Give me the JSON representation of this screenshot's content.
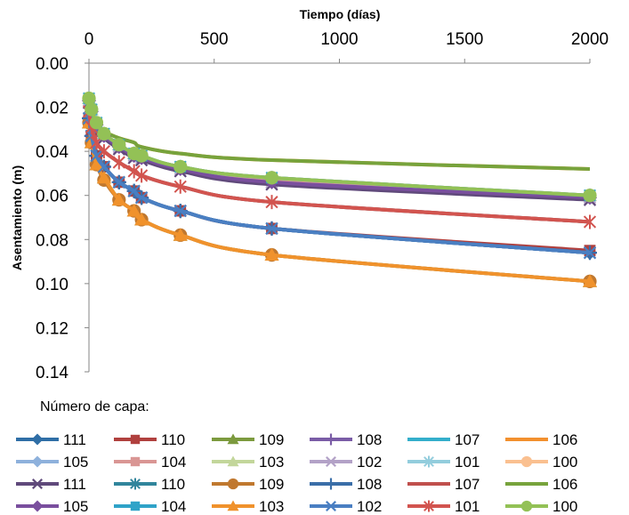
{
  "chart_data": {
    "type": "line",
    "title": "",
    "xlabel": "Tiempo (días)",
    "ylabel": "Asentamiento (m)",
    "xlim": [
      0,
      2000
    ],
    "ylim": [
      0.14,
      0.0
    ],
    "y_inverted": true,
    "x_axis_position": "top",
    "x_ticks": [
      "0",
      "500",
      "1000",
      "1500",
      "2000"
    ],
    "y_ticks": [
      "0.00",
      "0.02",
      "0.04",
      "0.06",
      "0.08",
      "0.10",
      "0.12",
      "0.14"
    ],
    "grid": false,
    "legend_title": "Número de capa:",
    "legend_position": "bottom",
    "x": [
      0,
      10,
      30,
      60,
      120,
      180,
      210,
      365,
      730,
      2000
    ],
    "series": [
      {
        "name": "111",
        "color": "#2f6ea6",
        "marker": "diamond",
        "values": [
          0.025,
          0.033,
          0.042,
          0.047,
          0.054,
          0.058,
          0.061,
          0.067,
          0.075,
          0.086
        ]
      },
      {
        "name": "110",
        "color": "#b0403e",
        "marker": "square",
        "values": [
          0.025,
          0.033,
          0.042,
          0.047,
          0.054,
          0.058,
          0.061,
          0.067,
          0.075,
          0.085
        ]
      },
      {
        "name": "109",
        "color": "#7c9a3e",
        "marker": "triangle",
        "values": [
          0.027,
          0.036,
          0.046,
          0.052,
          0.062,
          0.067,
          0.071,
          0.078,
          0.087,
          0.099
        ]
      },
      {
        "name": "108",
        "color": "#7a5ca6",
        "marker": "plus",
        "values": [
          0.025,
          0.033,
          0.042,
          0.047,
          0.054,
          0.058,
          0.061,
          0.067,
          0.075,
          0.086
        ]
      },
      {
        "name": "107",
        "color": "#33aecb",
        "marker": "none",
        "values": [
          0.022,
          0.029,
          0.036,
          0.04,
          0.045,
          0.049,
          0.051,
          0.056,
          0.063,
          0.072
        ]
      },
      {
        "name": "106",
        "color": "#f2902e",
        "marker": "none",
        "values": [
          0.018,
          0.023,
          0.028,
          0.031,
          0.034,
          0.036,
          0.038,
          0.041,
          0.044,
          0.048
        ]
      },
      {
        "name": "105",
        "color": "#8eb1dc",
        "marker": "diamond",
        "values": [
          0.017,
          0.022,
          0.028,
          0.033,
          0.038,
          0.042,
          0.043,
          0.047,
          0.053,
          0.061
        ]
      },
      {
        "name": "104",
        "color": "#d99694",
        "marker": "square",
        "values": [
          0.017,
          0.022,
          0.028,
          0.033,
          0.038,
          0.042,
          0.043,
          0.047,
          0.053,
          0.061
        ]
      },
      {
        "name": "103",
        "color": "#c3d69b",
        "marker": "triangle",
        "values": [
          0.016,
          0.021,
          0.027,
          0.032,
          0.037,
          0.041,
          0.042,
          0.047,
          0.052,
          0.06
        ]
      },
      {
        "name": "102",
        "color": "#b3a2c7",
        "marker": "x",
        "values": [
          0.017,
          0.022,
          0.028,
          0.033,
          0.038,
          0.042,
          0.043,
          0.048,
          0.054,
          0.061
        ]
      },
      {
        "name": "101",
        "color": "#93cddd",
        "marker": "asterisk",
        "values": [
          0.016,
          0.021,
          0.027,
          0.032,
          0.037,
          0.041,
          0.042,
          0.047,
          0.052,
          0.06
        ]
      },
      {
        "name": "100",
        "color": "#fac090",
        "marker": "circle",
        "values": [
          0.016,
          0.021,
          0.027,
          0.032,
          0.037,
          0.041,
          0.042,
          0.047,
          0.052,
          0.06
        ]
      },
      {
        "name": "111",
        "color": "#604a7b",
        "marker": "x",
        "values": [
          0.018,
          0.023,
          0.03,
          0.034,
          0.039,
          0.043,
          0.044,
          0.049,
          0.055,
          0.062
        ]
      },
      {
        "name": "110",
        "color": "#31859c",
        "marker": "asterisk",
        "values": [
          0.025,
          0.033,
          0.042,
          0.047,
          0.054,
          0.058,
          0.061,
          0.067,
          0.075,
          0.086
        ]
      },
      {
        "name": "109",
        "color": "#c0782f",
        "marker": "circle",
        "values": [
          0.027,
          0.036,
          0.046,
          0.053,
          0.062,
          0.067,
          0.071,
          0.078,
          0.087,
          0.099
        ]
      },
      {
        "name": "108",
        "color": "#3a6ea8",
        "marker": "plus",
        "values": [
          0.025,
          0.033,
          0.042,
          0.047,
          0.054,
          0.058,
          0.061,
          0.067,
          0.075,
          0.086
        ]
      },
      {
        "name": "107",
        "color": "#c0504d",
        "marker": "none",
        "values": [
          0.022,
          0.029,
          0.036,
          0.04,
          0.045,
          0.049,
          0.051,
          0.056,
          0.063,
          0.072
        ]
      },
      {
        "name": "106",
        "color": "#77a33c",
        "marker": "none",
        "values": [
          0.018,
          0.023,
          0.028,
          0.031,
          0.034,
          0.036,
          0.038,
          0.041,
          0.044,
          0.048
        ]
      },
      {
        "name": "105",
        "color": "#7a4f9e",
        "marker": "diamond",
        "values": [
          0.017,
          0.022,
          0.028,
          0.033,
          0.038,
          0.042,
          0.043,
          0.048,
          0.054,
          0.061
        ]
      },
      {
        "name": "104",
        "color": "#2fa3c8",
        "marker": "square",
        "values": [
          0.016,
          0.021,
          0.027,
          0.032,
          0.037,
          0.041,
          0.042,
          0.047,
          0.052,
          0.06
        ]
      },
      {
        "name": "103",
        "color": "#f0922c",
        "marker": "triangle",
        "values": [
          0.027,
          0.036,
          0.046,
          0.052,
          0.062,
          0.067,
          0.071,
          0.078,
          0.087,
          0.099
        ]
      },
      {
        "name": "102",
        "color": "#4a7fc2",
        "marker": "x",
        "values": [
          0.025,
          0.033,
          0.042,
          0.047,
          0.054,
          0.058,
          0.061,
          0.067,
          0.075,
          0.086
        ]
      },
      {
        "name": "101",
        "color": "#d2544f",
        "marker": "asterisk",
        "values": [
          0.022,
          0.029,
          0.036,
          0.04,
          0.045,
          0.049,
          0.051,
          0.056,
          0.063,
          0.072
        ]
      },
      {
        "name": "100",
        "color": "#93c156",
        "marker": "circle",
        "values": [
          0.016,
          0.021,
          0.027,
          0.032,
          0.037,
          0.041,
          0.042,
          0.047,
          0.052,
          0.06
        ]
      }
    ]
  }
}
